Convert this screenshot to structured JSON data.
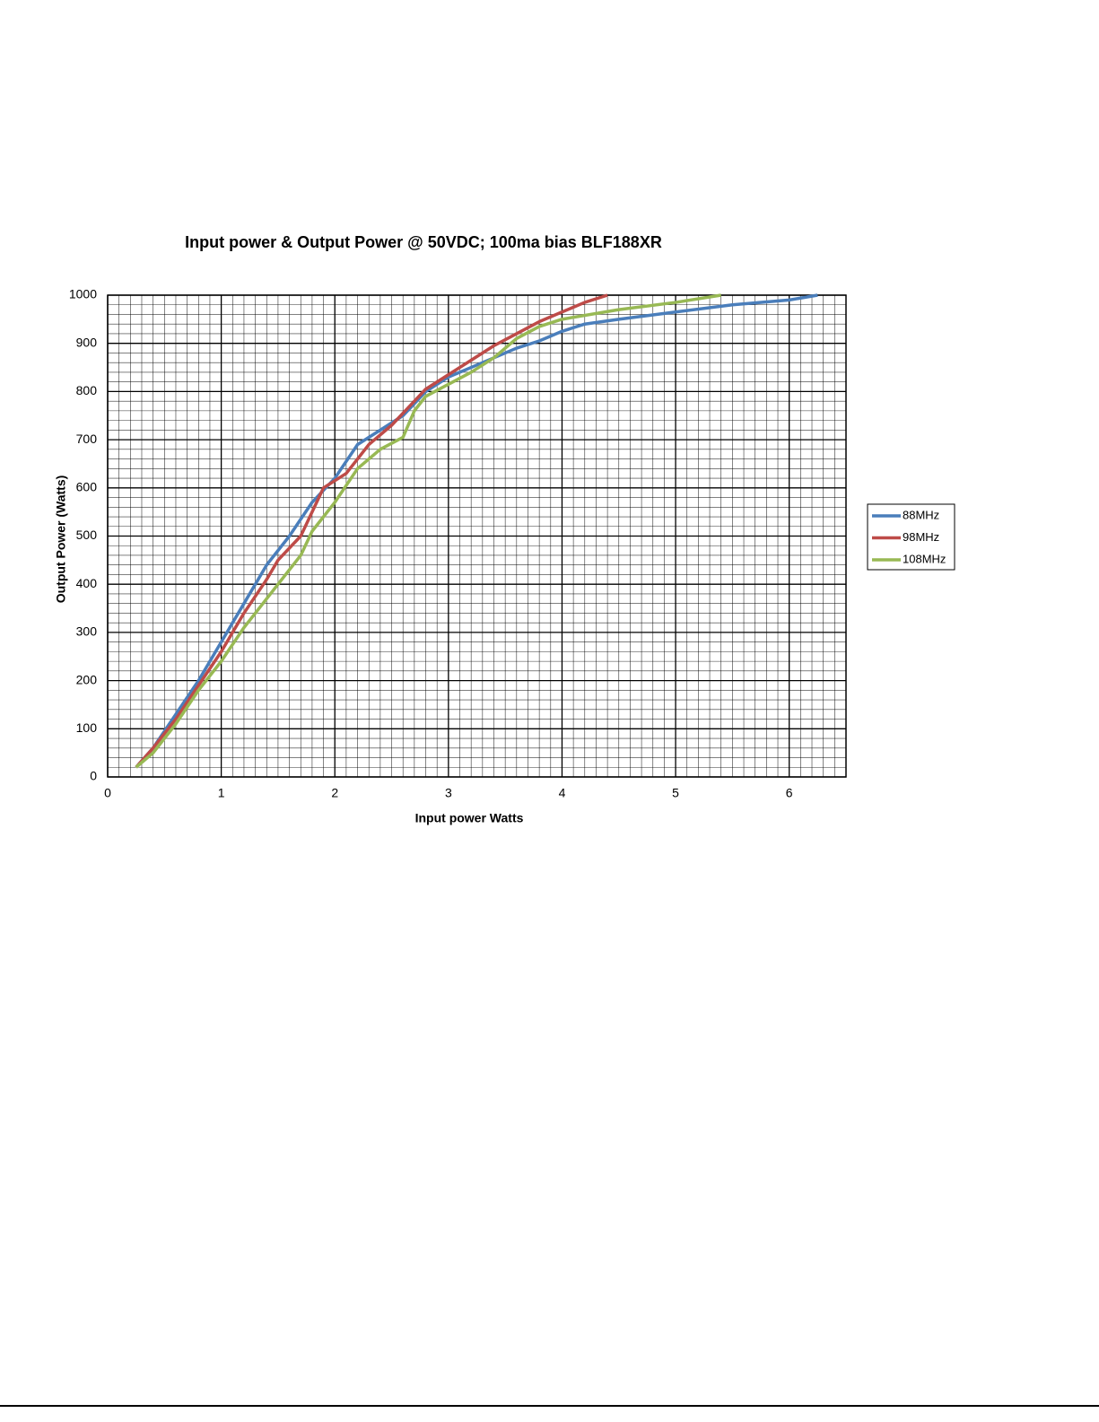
{
  "chart_data": {
    "type": "line",
    "title": "Input power & Output Power @ 50VDC; 100ma bias BLF188XR",
    "x_label": "Input power Watts",
    "y_label": "Output Power (Watts)",
    "xlim": [
      0,
      6.5
    ],
    "xticks": [
      0,
      1,
      2,
      3,
      4,
      5,
      6
    ],
    "ylim": [
      0,
      1000
    ],
    "yticks": [
      0,
      100,
      200,
      300,
      400,
      500,
      600,
      700,
      800,
      900,
      1000
    ],
    "grid": true,
    "legend": "right",
    "series": [
      {
        "name": "88MHz",
        "color": "#4a7ebb",
        "x": [
          0.25,
          0.4,
          0.6,
          0.8,
          1.0,
          1.2,
          1.4,
          1.6,
          1.8,
          2.0,
          2.2,
          2.4,
          2.6,
          2.8,
          3.0,
          3.2,
          3.4,
          3.6,
          3.8,
          4.0,
          4.2,
          4.5,
          5.0,
          5.5,
          6.0,
          6.25
        ],
        "values": [
          20,
          60,
          130,
          200,
          280,
          360,
          440,
          500,
          570,
          620,
          690,
          720,
          750,
          800,
          830,
          850,
          870,
          890,
          905,
          925,
          940,
          950,
          965,
          980,
          990,
          1000
        ]
      },
      {
        "name": "98MHz",
        "color": "#be4b48",
        "x": [
          0.25,
          0.4,
          0.6,
          0.8,
          1.0,
          1.2,
          1.4,
          1.5,
          1.7,
          1.8,
          1.9,
          2.1,
          2.3,
          2.5,
          2.7,
          2.8,
          3.0,
          3.2,
          3.4,
          3.6,
          3.8,
          4.0,
          4.2,
          4.4
        ],
        "values": [
          20,
          60,
          120,
          190,
          260,
          340,
          410,
          450,
          500,
          550,
          600,
          630,
          690,
          730,
          780,
          805,
          835,
          865,
          895,
          920,
          945,
          965,
          985,
          1000
        ]
      },
      {
        "name": "108MHz",
        "color": "#98b954",
        "x": [
          0.25,
          0.4,
          0.6,
          0.8,
          1.0,
          1.2,
          1.4,
          1.5,
          1.7,
          1.8,
          2.0,
          2.2,
          2.4,
          2.6,
          2.7,
          2.8,
          3.0,
          3.2,
          3.4,
          3.6,
          3.8,
          4.0,
          4.5,
          5.0,
          5.4
        ],
        "values": [
          20,
          50,
          110,
          180,
          240,
          310,
          370,
          400,
          460,
          510,
          570,
          640,
          680,
          705,
          760,
          790,
          815,
          840,
          870,
          910,
          935,
          950,
          970,
          985,
          1000
        ]
      }
    ]
  }
}
